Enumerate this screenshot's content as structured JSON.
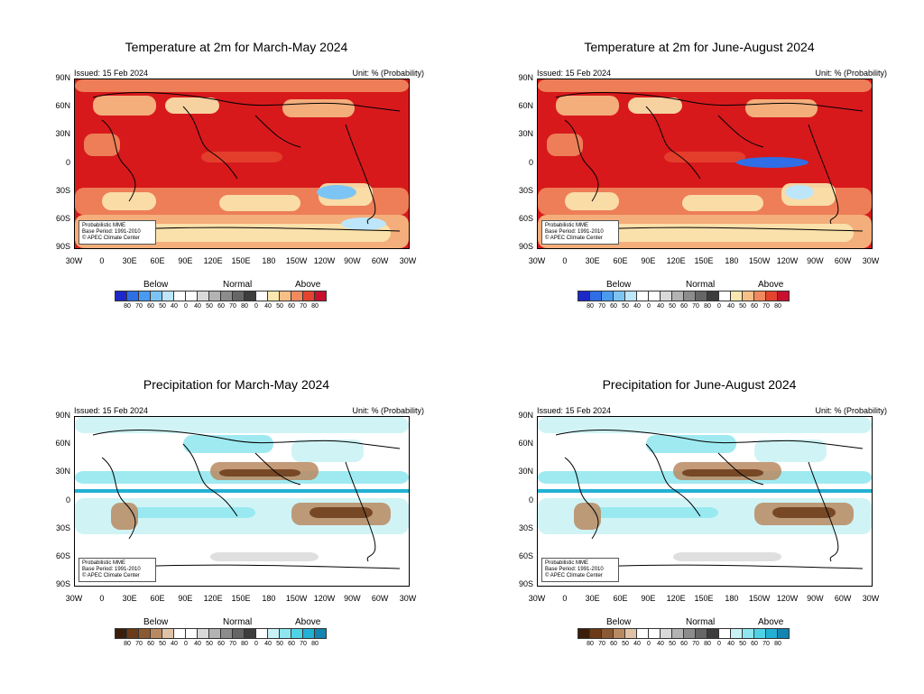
{
  "panels": [
    {
      "id": "temp-mam",
      "title": "Temperature at 2m for March-May 2024",
      "issued": "Issued: 15 Feb 2024",
      "unit": "Unit: % (Probability)",
      "note": [
        "Probabilistic MME",
        "Base Period: 1991-2010",
        "© APEC Climate Center"
      ],
      "variable": "temperature",
      "legend": {
        "below_label": "Below",
        "normal_label": "Normal",
        "above_label": "Above",
        "ticks": [
          "80",
          "70",
          "60",
          "50",
          "40",
          "0",
          "40",
          "50",
          "60",
          "70",
          "80",
          "0",
          "40",
          "50",
          "60",
          "70",
          "80"
        ],
        "colors": [
          "#1c28c8",
          "#2f6ee6",
          "#4a9bf0",
          "#7cc4f4",
          "#bde6fa",
          "#ffffff",
          "#ffffff",
          "#d9d9d9",
          "#b3b3b3",
          "#8c8c8c",
          "#666666",
          "#3d3d3d",
          "#ffffff",
          "#fbe7b0",
          "#f7bf86",
          "#f08a5e",
          "#e4432e",
          "#c8102e"
        ]
      }
    },
    {
      "id": "temp-jja",
      "title": "Temperature at 2m for June-August 2024",
      "issued": "Issued: 15 Feb 2024",
      "unit": "Unit: % (Probability)",
      "note": [
        "Probabilistic MME",
        "Base Period: 1991-2010",
        "© APEC Climate Center"
      ],
      "variable": "temperature",
      "legend": {
        "below_label": "Below",
        "normal_label": "Normal",
        "above_label": "Above",
        "ticks": [
          "80",
          "70",
          "60",
          "50",
          "40",
          "0",
          "40",
          "50",
          "60",
          "70",
          "80",
          "0",
          "40",
          "50",
          "60",
          "70",
          "80"
        ],
        "colors": [
          "#1c28c8",
          "#2f6ee6",
          "#4a9bf0",
          "#7cc4f4",
          "#bde6fa",
          "#ffffff",
          "#ffffff",
          "#d9d9d9",
          "#b3b3b3",
          "#8c8c8c",
          "#666666",
          "#3d3d3d",
          "#ffffff",
          "#fbe7b0",
          "#f7bf86",
          "#f08a5e",
          "#e4432e",
          "#c8102e"
        ]
      }
    },
    {
      "id": "prec-mam",
      "title": "Precipitation for March-May 2024",
      "issued": "Issued: 15 Feb 2024",
      "unit": "Unit: % (Probability)",
      "note": [
        "Probabilistic MME",
        "Base Period: 1991-2010",
        "© APEC Climate Center"
      ],
      "variable": "precipitation",
      "legend": {
        "below_label": "Below",
        "normal_label": "Normal",
        "above_label": "Above",
        "ticks": [
          "80",
          "70",
          "60",
          "50",
          "40",
          "0",
          "40",
          "50",
          "60",
          "70",
          "80",
          "0",
          "40",
          "50",
          "60",
          "70",
          "80"
        ],
        "colors": [
          "#3b1e0a",
          "#6b3a17",
          "#8c5a32",
          "#b98a62",
          "#e0c2a6",
          "#ffffff",
          "#ffffff",
          "#d9d9d9",
          "#b3b3b3",
          "#8c8c8c",
          "#666666",
          "#3d3d3d",
          "#ffffff",
          "#c8f2f5",
          "#8ee6ef",
          "#4fd2e6",
          "#22b0d4",
          "#1385b0"
        ]
      }
    },
    {
      "id": "prec-jja",
      "title": "Precipitation for June-August 2024",
      "issued": "Issued: 15 Feb 2024",
      "unit": "Unit: % (Probability)",
      "note": [
        "Probabilistic MME",
        "Base Period: 1991-2010",
        "© APEC Climate Center"
      ],
      "variable": "precipitation",
      "legend": {
        "below_label": "Below",
        "normal_label": "Normal",
        "above_label": "Above",
        "ticks": [
          "80",
          "70",
          "60",
          "50",
          "40",
          "0",
          "40",
          "50",
          "60",
          "70",
          "80",
          "0",
          "40",
          "50",
          "60",
          "70",
          "80"
        ],
        "colors": [
          "#3b1e0a",
          "#6b3a17",
          "#8c5a32",
          "#b98a62",
          "#e0c2a6",
          "#ffffff",
          "#ffffff",
          "#d9d9d9",
          "#b3b3b3",
          "#8c8c8c",
          "#666666",
          "#3d3d3d",
          "#ffffff",
          "#c8f2f5",
          "#8ee6ef",
          "#4fd2e6",
          "#22b0d4",
          "#1385b0"
        ]
      }
    }
  ],
  "lat_labels": [
    "90N",
    "60N",
    "30N",
    "0",
    "30S",
    "60S",
    "90S"
  ],
  "lon_labels": [
    "30W",
    "0",
    "30E",
    "60E",
    "90E",
    "120E",
    "150E",
    "180",
    "150W",
    "120W",
    "90W",
    "60W",
    "30W"
  ]
}
